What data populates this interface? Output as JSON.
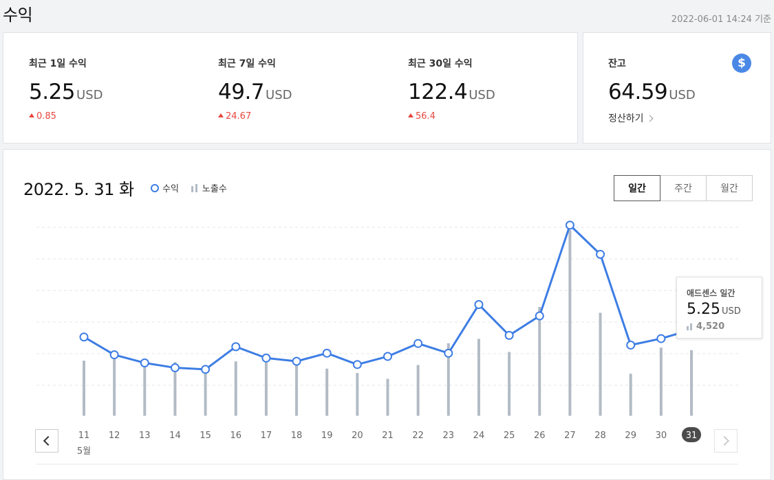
{
  "header": {
    "title": "수익",
    "timestamp": "2022-06-01 14:24 기준"
  },
  "stats": [
    {
      "label": "최근 1일 수익",
      "value": "5.25",
      "unit": "USD",
      "delta": "0.85"
    },
    {
      "label": "최근 7일 수익",
      "value": "49.7",
      "unit": "USD",
      "delta": "24.67"
    },
    {
      "label": "최근 30일 수익",
      "value": "122.4",
      "unit": "USD",
      "delta": "56.4"
    }
  ],
  "balance": {
    "label": "잔고",
    "value": "64.59",
    "unit": "USD",
    "settle_label": "정산하기",
    "icon": "dollar-icon",
    "icon_glyph": "$"
  },
  "chart_header": {
    "date": "2022. 5. 31 화",
    "legend_revenue": "수익",
    "legend_impressions": "노출수",
    "tabs": [
      "일간",
      "주간",
      "월간"
    ],
    "active_tab": "일간"
  },
  "tooltip": {
    "title": "애드센스 일간",
    "value": "5.25",
    "unit": "USD",
    "impressions": "4,520"
  },
  "colors": {
    "line": "#3d7de4",
    "bar": "#b2bbc5",
    "delta_up": "#e8453c",
    "selected_day_bg": "#4b4b4b"
  },
  "chart_data": {
    "type": "line",
    "x": [
      "11",
      "12",
      "13",
      "14",
      "15",
      "16",
      "17",
      "18",
      "19",
      "20",
      "21",
      "22",
      "23",
      "24",
      "25",
      "26",
      "27",
      "28",
      "29",
      "30",
      "31"
    ],
    "month_label": "5월",
    "selected": "31",
    "series": [
      {
        "name": "수익",
        "type": "line",
        "values": [
          4.8,
          3.7,
          3.2,
          2.9,
          2.8,
          4.2,
          3.5,
          3.3,
          3.8,
          3.1,
          3.6,
          4.4,
          3.8,
          6.8,
          4.9,
          6.1,
          11.7,
          9.9,
          4.3,
          4.7,
          5.25
        ]
      },
      {
        "name": "노출수",
        "type": "bar",
        "values": [
          3800,
          4100,
          3350,
          3700,
          3050,
          3750,
          4050,
          3550,
          3250,
          2950,
          2550,
          3500,
          5000,
          5300,
          4400,
          7500,
          12800,
          7100,
          2900,
          4700,
          4520
        ]
      }
    ],
    "grid": true
  }
}
